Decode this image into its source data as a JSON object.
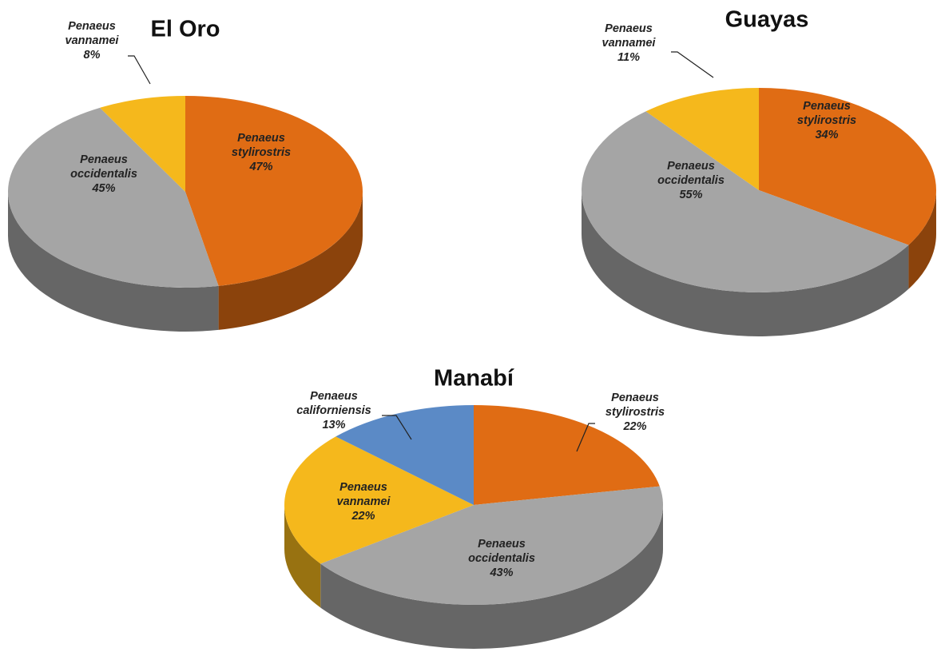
{
  "chart_data": [
    {
      "type": "pie3d",
      "title": "El Oro",
      "categories": [
        "Penaeus stylirostris",
        "Penaeus occidentalis",
        "Penaeus vannamei"
      ],
      "values": [
        47,
        45,
        8
      ],
      "value_labels": [
        "47%",
        "45%",
        "8%"
      ],
      "colors": [
        "#e06c14",
        "#a5a5a5",
        "#f5b81c"
      ]
    },
    {
      "type": "pie3d",
      "title": "Guayas",
      "categories": [
        "Penaeus stylirostris",
        "Penaeus occidentalis",
        "Penaeus vannamei"
      ],
      "values": [
        34,
        55,
        11
      ],
      "value_labels": [
        "34%",
        "55%",
        "11%"
      ],
      "colors": [
        "#e06c14",
        "#a5a5a5",
        "#f5b81c"
      ]
    },
    {
      "type": "pie3d",
      "title": "Manabí",
      "categories": [
        "Penaeus stylirostris",
        "Penaeus occidentalis",
        "Penaeus vannamei",
        "Penaeus californiensis"
      ],
      "values": [
        22,
        43,
        22,
        13
      ],
      "value_labels": [
        "22%",
        "43%",
        "22%",
        "13%"
      ],
      "colors": [
        "#e06c14",
        "#a5a5a5",
        "#f5b81c",
        "#5b8ac6"
      ]
    }
  ]
}
